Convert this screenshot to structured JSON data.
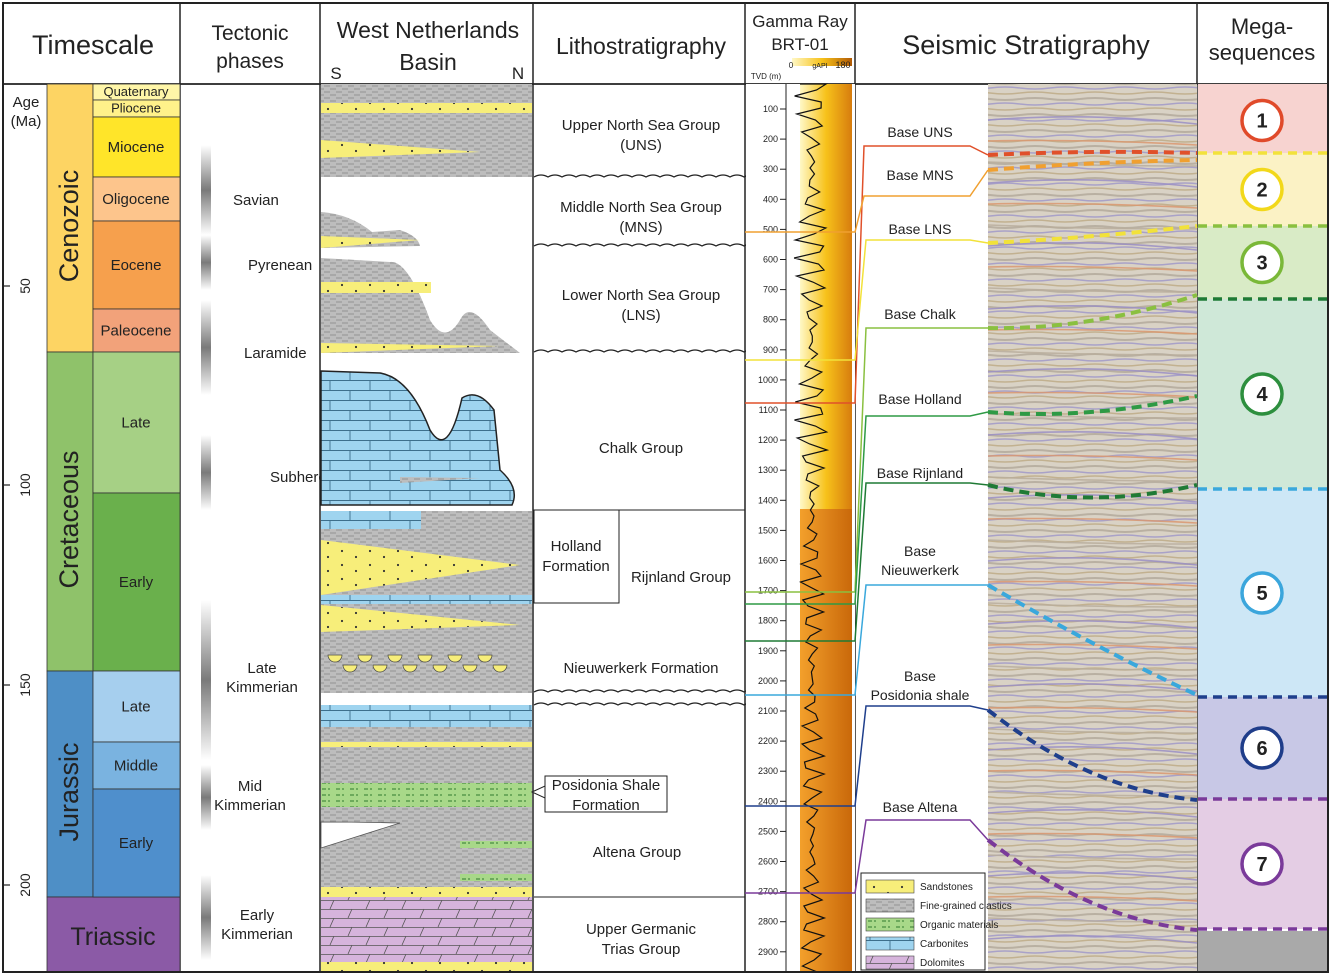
{
  "headers": {
    "timescale": "Timescale",
    "tectonic": [
      "Tectonic",
      "phases"
    ],
    "basin": [
      "West Netherlands",
      "Basin"
    ],
    "basin_s": "S",
    "basin_n": "N",
    "litho": "Lithostratigraphy",
    "gamma": [
      "Gamma Ray",
      "BRT-01"
    ],
    "gamma_tvd": "TVD (m)",
    "gamma_scale": [
      "0",
      "gAPI",
      "180"
    ],
    "seismic": "Seismic Stratigraphy",
    "mega": [
      "Mega-",
      "sequences"
    ]
  },
  "age_axis": {
    "label": [
      "Age",
      "(Ma)"
    ],
    "ticks": [
      "50",
      "100",
      "150",
      "200"
    ]
  },
  "eras": [
    {
      "name": "Cenozoic",
      "color": "#fdd463"
    },
    {
      "name": "Cretaceous",
      "color": "#8fc26a"
    },
    {
      "name": "Jurassic",
      "color": "#4e8fc6"
    },
    {
      "name": "Triassic",
      "color": "#8b5aa6"
    }
  ],
  "epochs": [
    {
      "name": "Quaternary",
      "color": "#fff6a8"
    },
    {
      "name": "Pliocene",
      "color": "#fff18a"
    },
    {
      "name": "Miocene",
      "color": "#ffe529"
    },
    {
      "name": "Oligocene",
      "color": "#fdc58c"
    },
    {
      "name": "Eocene",
      "color": "#f6a04d"
    },
    {
      "name": "Paleocene",
      "color": "#f2a27a"
    },
    {
      "name": "Late",
      "color": "#a6d085"
    },
    {
      "name": "Early",
      "color": "#6ab04c"
    },
    {
      "name": "Late",
      "color": "#a6cfee"
    },
    {
      "name": "Middle",
      "color": "#7ab3e0"
    },
    {
      "name": "Early",
      "color": "#4f8fcc"
    }
  ],
  "tectonic_phases": [
    [
      "Savian"
    ],
    [
      "Pyrenean"
    ],
    [
      "Laramide"
    ],
    [
      "Subhercynian"
    ],
    [
      "Late",
      "Kimmerian"
    ],
    [
      "Mid",
      "Kimmerian"
    ],
    [
      "Early",
      "Kimmerian"
    ]
  ],
  "litho_units": [
    [
      "Upper North Sea Group",
      "(UNS)"
    ],
    [
      "Middle North Sea Group",
      "(MNS)"
    ],
    [
      "Lower North Sea Group",
      "(LNS)"
    ],
    [
      "Chalk Group"
    ],
    [
      "Holland",
      "Formation"
    ],
    [
      "Rijnland Group"
    ],
    [
      "Nieuwerkerk Formation"
    ],
    [
      "Posidonia Shale",
      "Formation"
    ],
    [
      "Altena Group"
    ],
    [
      "Upper Germanic",
      "Trias Group"
    ]
  ],
  "gamma_depths": [
    "100",
    "200",
    "300",
    "400",
    "500",
    "600",
    "700",
    "800",
    "900",
    "1000",
    "1100",
    "1200",
    "1300",
    "1400",
    "1500",
    "1600",
    "1700",
    "1800",
    "1900",
    "2000",
    "2100",
    "2200",
    "2300",
    "2400",
    "2500",
    "2600",
    "2700",
    "2800",
    "2900"
  ],
  "seismic_horizons": [
    {
      "name": [
        "Base UNS"
      ],
      "color": "#e0502a"
    },
    {
      "name": [
        "Base MNS"
      ],
      "color": "#f0a030"
    },
    {
      "name": [
        "Base LNS"
      ],
      "color": "#f2e23a"
    },
    {
      "name": [
        "Base Chalk"
      ],
      "color": "#8ac040"
    },
    {
      "name": [
        "Base Holland"
      ],
      "color": "#2e9a45"
    },
    {
      "name": [
        "Base Rijnland"
      ],
      "color": "#1f7a35"
    },
    {
      "name": [
        "Base",
        "Nieuwerkerk"
      ],
      "color": "#3aa8dc"
    },
    {
      "name": [
        "Base",
        "Posidonia shale"
      ],
      "color": "#1f3f8c"
    },
    {
      "name": [
        "Base Altena"
      ],
      "color": "#7a3a9a"
    }
  ],
  "megasequences": [
    {
      "label": "1",
      "color": "#e04a2a",
      "bg": "#f7d3d0"
    },
    {
      "label": "2",
      "color": "#f2d81a",
      "bg": "#fbf2c5"
    },
    {
      "label": "3",
      "color": "#7ab838",
      "bg": "#d9ebc6"
    },
    {
      "label": "4",
      "color": "#2d8f3e",
      "bg": "#cfe8d8"
    },
    {
      "label": "5",
      "color": "#3ba6dc",
      "bg": "#cde7f6"
    },
    {
      "label": "6",
      "color": "#1f3d8a",
      "bg": "#c8c8e6"
    },
    {
      "label": "7",
      "color": "#7a3a9a",
      "bg": "#e4cde4"
    }
  ],
  "legend": [
    "Sandstones",
    "Fine-grained clastics",
    "Organic materials",
    "Carbonites",
    "Dolomites"
  ]
}
